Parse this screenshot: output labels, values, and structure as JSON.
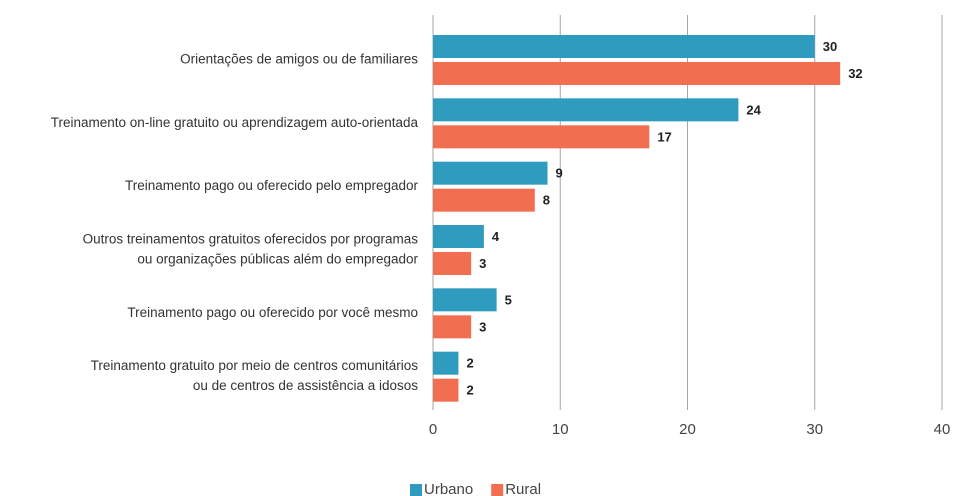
{
  "chart_data": {
    "type": "hbar",
    "categories": [
      [
        "Orientações de amigos ou de familiares"
      ],
      [
        "Treinamento on-line gratuito ou aprendizagem auto-orientada"
      ],
      [
        "Treinamento pago ou oferecido pelo empregador"
      ],
      [
        "Outros treinamentos gratuitos oferecidos por programas",
        "ou organizações públicas além do empregador"
      ],
      [
        "Treinamento pago ou oferecido por você mesmo"
      ],
      [
        "Treinamento gratuito por meio de centros comunitários",
        "ou de centros de assistência a idosos"
      ]
    ],
    "series": [
      {
        "name": "Urbano",
        "color": "#2f9bbf",
        "values": [
          30,
          24,
          9,
          4,
          5,
          2
        ]
      },
      {
        "name": "Rural",
        "color": "#f26e50",
        "values": [
          32,
          17,
          8,
          3,
          3,
          2
        ]
      }
    ],
    "xlim": [
      0,
      40
    ],
    "xticks": [
      0,
      10,
      20,
      30,
      40
    ],
    "grid": true,
    "legend": "bottom"
  }
}
